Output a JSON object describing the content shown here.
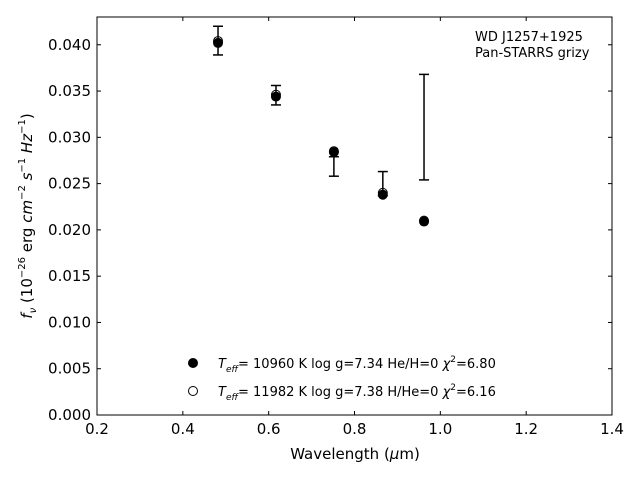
{
  "chart_data": {
    "type": "scatter",
    "xlabel": {
      "pre": "Wavelength (",
      "mu": "μ",
      "post": "m)"
    },
    "ylabel": {
      "f": "f",
      "nu": "ν",
      "paren_open": " (10",
      "exp1": "−26",
      "erg": " erg ",
      "cm": "cm",
      "exp2": "−2",
      "s": " s",
      "exp3": "−1",
      "hz": " Hz",
      "exp4": "−1",
      "paren_close": ")"
    },
    "xlim": [
      0.2,
      1.4
    ],
    "ylim": [
      0.0,
      0.043
    ],
    "xticks": [
      "0.2",
      "0.4",
      "0.6",
      "0.8",
      "1.0",
      "1.2",
      "1.4"
    ],
    "yticks": [
      "0.000",
      "0.005",
      "0.010",
      "0.015",
      "0.020",
      "0.025",
      "0.030",
      "0.035",
      "0.040"
    ],
    "annotation": [
      "WD J1257+1925",
      "Pan-STARRS grizy"
    ],
    "observed": [
      {
        "x": 0.482,
        "y_low": 0.0389,
        "y_high": 0.042,
        "y_mid": 0.0402
      },
      {
        "x": 0.617,
        "y_low": 0.0335,
        "y_high": 0.0356,
        "y_mid": 0.0344
      },
      {
        "x": 0.752,
        "y_low": 0.0258,
        "y_high": 0.0279,
        "y_mid": 0.0279
      },
      {
        "x": 0.866,
        "y_low": 0.0237,
        "y_high": 0.0263,
        "y_mid": 0.024
      },
      {
        "x": 0.962,
        "y_low": 0.0254,
        "y_high": 0.0368,
        "y_mid": 0.0368
      }
    ],
    "series": [
      {
        "filled": true,
        "label": {
          "T": "T",
          "sub": "eff",
          "rest": "= 10960 K  log g=7.34  He/H=0  ",
          "chi": "χ",
          "sup": "2",
          "end": "=6.80"
        },
        "points": [
          {
            "x": 0.482,
            "y": 0.0402
          },
          {
            "x": 0.617,
            "y": 0.0344
          },
          {
            "x": 0.752,
            "y": 0.0284
          },
          {
            "x": 0.866,
            "y": 0.0238
          },
          {
            "x": 0.962,
            "y": 0.0209
          }
        ]
      },
      {
        "filled": false,
        "label": {
          "T": "T",
          "sub": "eff",
          "rest": "= 11982 K  log g=7.38  H/He=0  ",
          "chi": "χ",
          "sup": "2",
          "end": "=6.16"
        },
        "points": [
          {
            "x": 0.482,
            "y": 0.0404
          },
          {
            "x": 0.617,
            "y": 0.0346
          },
          {
            "x": 0.752,
            "y": 0.0285
          },
          {
            "x": 0.866,
            "y": 0.024
          },
          {
            "x": 0.962,
            "y": 0.021
          }
        ]
      }
    ]
  }
}
